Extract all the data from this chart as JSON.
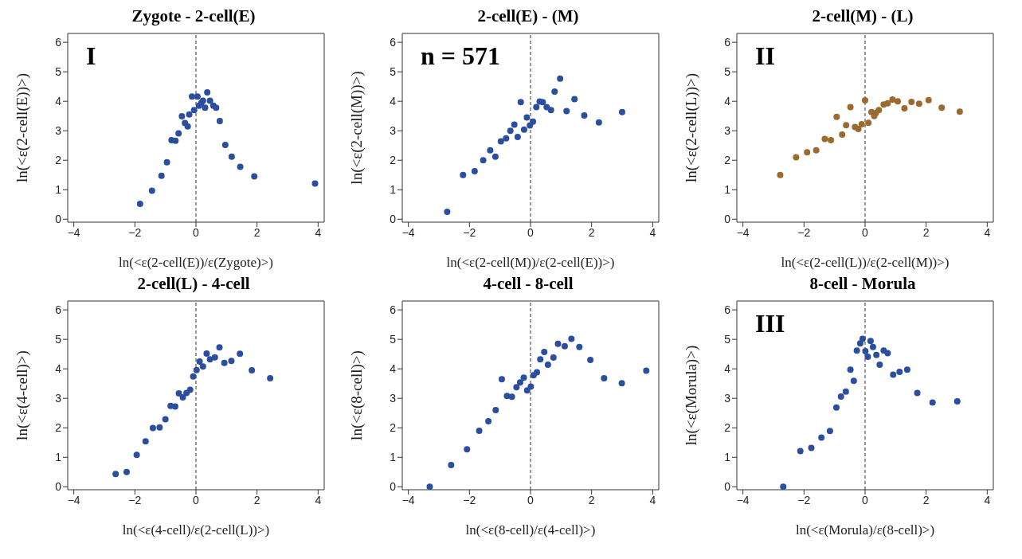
{
  "chart_data": [
    {
      "type": "scatter",
      "title": "Zygote - 2-cell(E)",
      "xlabel": "ln(<ε(2-cell(E))/ε(Zygote)>)",
      "ylabel": "ln(<ε(2-cell(E))>)",
      "annotations": [
        "I"
      ],
      "xlim": [
        -4.2,
        4.2
      ],
      "ylim": [
        -0.1,
        6.3
      ],
      "xticks": [
        -4,
        -2,
        0,
        2,
        4
      ],
      "yticks": [
        0,
        1,
        2,
        3,
        4,
        5,
        6
      ],
      "marker": "circle",
      "ref_lines": [
        {
          "axis": "x",
          "value": 0,
          "line_style": "dashed"
        }
      ],
      "series": [
        {
          "color": "#2b4f9e",
          "x": [
            -1.83,
            -1.44,
            -1.13,
            -0.95,
            -0.8,
            -0.67,
            -0.57,
            -0.46,
            -0.36,
            -0.27,
            -0.22,
            -0.13,
            -0.06,
            0.05,
            0.1,
            0.17,
            0.23,
            0.3,
            0.37,
            0.46,
            0.57,
            0.66,
            0.78,
            0.96,
            1.17,
            1.45,
            1.91,
            3.9
          ],
          "values": [
            0.52,
            0.97,
            1.47,
            1.93,
            2.68,
            2.66,
            2.91,
            3.49,
            3.26,
            3.15,
            3.55,
            4.16,
            3.7,
            4.16,
            3.85,
            3.94,
            4.02,
            3.78,
            4.3,
            4.02,
            3.85,
            3.78,
            3.33,
            2.52,
            2.12,
            1.78,
            1.45,
            1.21
          ]
        }
      ]
    },
    {
      "type": "scatter",
      "title": "2-cell(E) - (M)",
      "xlabel": "ln(<ε(2-cell(M))/ε(2-cell(E))>)",
      "ylabel": "ln(<ε(2-cell(M))>)",
      "annotations": [
        "n = 571"
      ],
      "xlim": [
        -4.2,
        4.2
      ],
      "ylim": [
        -0.1,
        6.3
      ],
      "xticks": [
        -4,
        -2,
        0,
        2,
        4
      ],
      "yticks": [
        0,
        1,
        2,
        3,
        4,
        5,
        6
      ],
      "marker": "circle",
      "ref_lines": [
        {
          "axis": "x",
          "value": 0,
          "line_style": "dashed"
        }
      ],
      "series": [
        {
          "color": "#2b4f9e",
          "x": [
            -2.73,
            -2.21,
            -1.83,
            -1.55,
            -1.32,
            -1.15,
            -0.97,
            -0.8,
            -0.66,
            -0.53,
            -0.42,
            -0.32,
            -0.21,
            -0.12,
            -0.02,
            0.08,
            0.19,
            0.3,
            0.4,
            0.53,
            0.67,
            0.79,
            0.97,
            1.18,
            1.44,
            1.76,
            2.24,
            3.0
          ],
          "values": [
            0.25,
            1.5,
            1.63,
            2.0,
            2.34,
            2.12,
            2.64,
            2.74,
            3.0,
            3.21,
            2.79,
            3.97,
            3.04,
            3.45,
            3.18,
            3.31,
            3.8,
            3.99,
            3.97,
            3.8,
            3.7,
            4.33,
            4.77,
            3.67,
            4.07,
            3.52,
            3.28,
            3.63
          ]
        }
      ]
    },
    {
      "type": "scatter",
      "title": "2-cell(M) - (L)",
      "xlabel": "ln(<ε(2-cell(L))/ε(2-cell(M))>)",
      "ylabel": "ln(<ε(2-cell(L))>)",
      "annotations": [
        "II"
      ],
      "xlim": [
        -4.2,
        4.2
      ],
      "ylim": [
        -0.1,
        6.3
      ],
      "xticks": [
        -4,
        -2,
        0,
        2,
        4
      ],
      "yticks": [
        0,
        1,
        2,
        3,
        4,
        5,
        6
      ],
      "marker": "circle",
      "ref_lines": [
        {
          "axis": "x",
          "value": 0,
          "line_style": "dashed"
        }
      ],
      "series": [
        {
          "color": "#9a6a30",
          "x": [
            -2.78,
            -2.26,
            -1.9,
            -1.6,
            -1.32,
            -1.12,
            -0.93,
            -0.75,
            -0.62,
            -0.48,
            -0.33,
            -0.22,
            -0.11,
            0.0,
            0.11,
            0.21,
            0.3,
            0.35,
            0.45,
            0.61,
            0.74,
            0.9,
            1.07,
            1.29,
            1.52,
            1.77,
            2.08,
            2.51,
            3.1
          ],
          "values": [
            1.5,
            2.1,
            2.27,
            2.34,
            2.72,
            2.68,
            3.47,
            2.87,
            3.19,
            3.8,
            3.13,
            3.06,
            3.22,
            4.03,
            3.27,
            3.63,
            3.5,
            3.6,
            3.7,
            3.89,
            3.93,
            4.06,
            4.0,
            3.76,
            3.98,
            3.92,
            4.04,
            3.78,
            3.65
          ]
        }
      ]
    },
    {
      "type": "scatter",
      "title": "2-cell(L) - 4-cell",
      "xlabel": "ln(<ε(4-cell)/ε(2-cell(L))>)",
      "ylabel": "ln(<ε(4-cell)>)",
      "xlim": [
        -4.2,
        4.2
      ],
      "ylim": [
        -0.1,
        6.3
      ],
      "xticks": [
        -4,
        -2,
        0,
        2,
        4
      ],
      "yticks": [
        0,
        1,
        2,
        3,
        4,
        5,
        6
      ],
      "marker": "circle",
      "ref_lines": [
        {
          "axis": "x",
          "value": 0,
          "line_style": "dashed"
        }
      ],
      "series": [
        {
          "color": "#2b4f9e",
          "x": [
            -2.63,
            -2.27,
            -1.94,
            -1.65,
            -1.41,
            -1.19,
            -1.0,
            -0.83,
            -0.68,
            -0.56,
            -0.43,
            -0.31,
            -0.19,
            -0.09,
            0.02,
            0.12,
            0.23,
            0.35,
            0.46,
            0.62,
            0.77,
            0.93,
            1.16,
            1.44,
            1.83,
            2.43
          ],
          "values": [
            0.43,
            0.5,
            1.08,
            1.54,
            1.99,
            2.01,
            2.29,
            2.74,
            2.72,
            3.17,
            3.03,
            3.18,
            3.29,
            3.74,
            3.96,
            4.25,
            4.08,
            4.52,
            4.32,
            4.39,
            4.73,
            4.2,
            4.27,
            4.51,
            3.95,
            3.68
          ]
        }
      ]
    },
    {
      "type": "scatter",
      "title": "4-cell - 8-cell",
      "xlabel": "ln(<ε(8-cell)/ε(4-cell)>)",
      "ylabel": "ln(<ε(8-cell)>)",
      "xlim": [
        -4.2,
        4.2
      ],
      "ylim": [
        -0.1,
        6.3
      ],
      "xticks": [
        -4,
        -2,
        0,
        2,
        4
      ],
      "yticks": [
        0,
        1,
        2,
        3,
        4,
        5,
        6
      ],
      "marker": "circle",
      "ref_lines": [
        {
          "axis": "x",
          "value": 0,
          "line_style": "dashed"
        }
      ],
      "series": [
        {
          "color": "#2b4f9e",
          "x": [
            -3.3,
            -2.6,
            -2.08,
            -1.68,
            -1.38,
            -1.14,
            -0.94,
            -0.77,
            -0.61,
            -0.46,
            -0.34,
            -0.22,
            -0.11,
            0.01,
            0.1,
            0.21,
            0.32,
            0.45,
            0.57,
            0.75,
            0.9,
            1.12,
            1.34,
            1.6,
            1.96,
            2.41,
            2.99,
            3.79
          ],
          "values": [
            0.0,
            0.74,
            1.27,
            1.9,
            2.22,
            2.6,
            3.65,
            3.08,
            3.05,
            3.38,
            3.54,
            3.7,
            3.27,
            3.4,
            3.78,
            3.88,
            4.32,
            4.57,
            4.14,
            4.38,
            4.85,
            4.77,
            5.02,
            4.74,
            4.3,
            3.68,
            3.51,
            3.94
          ]
        }
      ]
    },
    {
      "type": "scatter",
      "title": "8-cell - Morula",
      "xlabel": "ln(<ε(Morula)/ε(8-cell)>)",
      "ylabel": "ln(<ε(Morula)>)",
      "annotations": [
        "III"
      ],
      "xlim": [
        -4.2,
        4.2
      ],
      "ylim": [
        -0.1,
        6.3
      ],
      "xticks": [
        -4,
        -2,
        0,
        2,
        4
      ],
      "yticks": [
        0,
        1,
        2,
        3,
        4,
        5,
        6
      ],
      "marker": "circle",
      "ref_lines": [
        {
          "axis": "x",
          "value": 0,
          "line_style": "dashed"
        }
      ],
      "series": [
        {
          "color": "#2b4f9e",
          "x": [
            -2.68,
            -2.12,
            -1.76,
            -1.43,
            -1.15,
            -0.94,
            -0.79,
            -0.63,
            -0.48,
            -0.37,
            -0.27,
            -0.16,
            -0.08,
            0.01,
            0.09,
            0.18,
            0.26,
            0.37,
            0.48,
            0.61,
            0.74,
            0.92,
            1.13,
            1.38,
            1.71,
            2.21,
            3.02
          ],
          "values": [
            0.0,
            1.21,
            1.32,
            1.67,
            1.89,
            2.69,
            3.06,
            3.23,
            3.97,
            3.59,
            4.62,
            4.86,
            5.02,
            4.6,
            4.41,
            4.94,
            4.74,
            4.47,
            4.14,
            4.62,
            4.53,
            3.8,
            3.9,
            3.97,
            3.18,
            2.86,
            2.9
          ]
        }
      ]
    }
  ]
}
